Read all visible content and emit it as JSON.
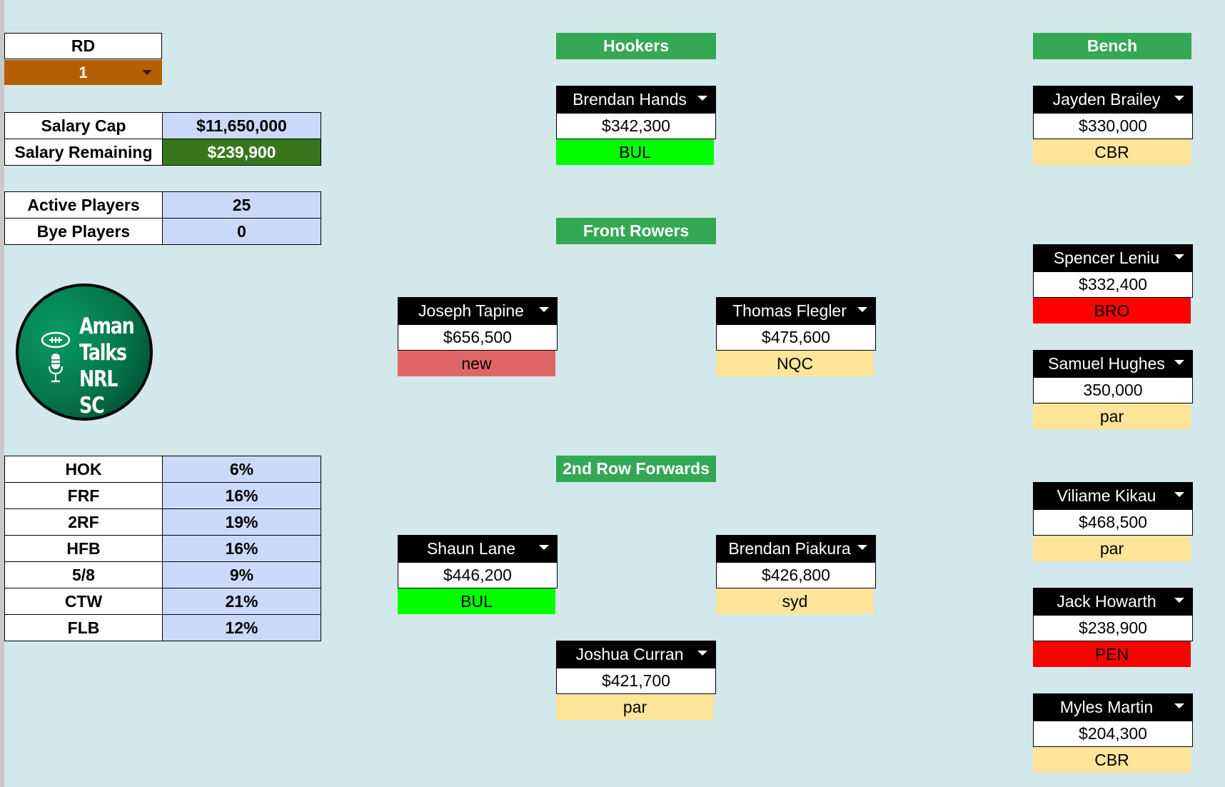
{
  "round": {
    "label": "RD",
    "value": "1"
  },
  "salary": [
    {
      "key": "Salary Cap",
      "value": "$11,650,000"
    },
    {
      "key": "Salary Remaining",
      "value": "$239,900"
    }
  ],
  "players_count": [
    {
      "key": "Active Players",
      "value": "25"
    },
    {
      "key": "Bye Players",
      "value": "0"
    }
  ],
  "logo": {
    "lines": [
      "Aman",
      "Talks",
      "NRL SC"
    ]
  },
  "positions": [
    {
      "key": "HOK",
      "value": "6%"
    },
    {
      "key": "FRF",
      "value": "16%"
    },
    {
      "key": "2RF",
      "value": "19%"
    },
    {
      "key": "HFB",
      "value": "16%"
    },
    {
      "key": "5/8",
      "value": "9%"
    },
    {
      "key": "CTW",
      "value": "21%"
    },
    {
      "key": "FLB",
      "value": "12%"
    }
  ],
  "sections": {
    "hookers": "Hookers",
    "front_rowers": "Front Rowers",
    "second_row": "2nd Row Forwards",
    "bench": "Bench"
  },
  "players": {
    "hooker": {
      "name": "Brendan Hands",
      "price": "$342,300",
      "team": "BUL",
      "team_color": "#00ff00"
    },
    "frf1": {
      "name": "Joseph Tapine",
      "price": "$656,500",
      "team": "new",
      "team_color": "#e06666"
    },
    "frf2": {
      "name": "Thomas Flegler",
      "price": "$475,600",
      "team": "NQC",
      "team_color": "#ffe599"
    },
    "rf1": {
      "name": "Shaun Lane",
      "price": "$446,200",
      "team": "BUL",
      "team_color": "#00ff00"
    },
    "rf2": {
      "name": "Brendan Piakura",
      "price": "$426,800",
      "team": "syd",
      "team_color": "#ffe599"
    },
    "rf3": {
      "name": "Joshua Curran",
      "price": "$421,700",
      "team": "par",
      "team_color": "#ffe599"
    },
    "bench1": {
      "name": "Jayden Brailey",
      "price": "$330,000",
      "team": "CBR",
      "team_color": "#ffe599"
    },
    "bench2": {
      "name": "Spencer Leniu",
      "price": "$332,400",
      "team": "BRO",
      "team_color": "#ff0000"
    },
    "bench3": {
      "name": "Samuel Hughes",
      "price": "350,000",
      "team": "par",
      "team_color": "#ffe599"
    },
    "bench4": {
      "name": "Viliame Kikau",
      "price": "$468,500",
      "team": "par",
      "team_color": "#ffe599"
    },
    "bench5": {
      "name": "Jack Howarth",
      "price": "$238,900",
      "team": "PEN",
      "team_color": "#ff0000"
    },
    "bench6": {
      "name": "Myles Martin",
      "price": "$204,300",
      "team": "CBR",
      "team_color": "#ffe599"
    }
  },
  "colors": {
    "background": "#d3e8ea",
    "section_header": "#34a853",
    "round_select": "#b45f06",
    "value_cell": "#c9daf8",
    "remaining_cell": "#38761d"
  }
}
